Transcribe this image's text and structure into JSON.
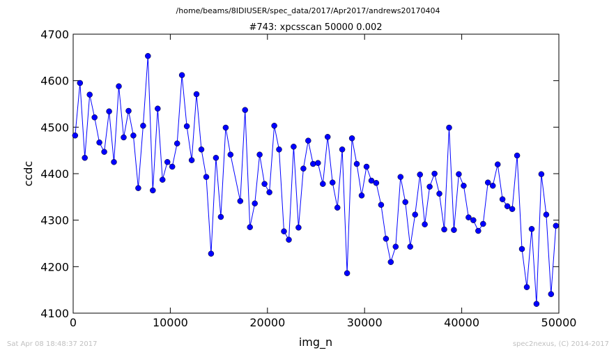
{
  "header": {
    "path": "/home/beams/8IDIUSER/spec_data/2017/Apr2017/andrews20170404"
  },
  "footer": {
    "timestamp": "Sat Apr 08 18:48:37 2017",
    "credit": "spec2nexus, (C) 2014-2017"
  },
  "chart_data": {
    "type": "line",
    "title": "#743: xpcsscan 50000 0.002",
    "xlabel": "img_n",
    "ylabel": "ccdc",
    "xlim": [
      0,
      50000
    ],
    "ylim": [
      4100,
      4700
    ],
    "xticks": [
      0,
      10000,
      20000,
      30000,
      40000,
      50000
    ],
    "yticks": [
      4100,
      4200,
      4300,
      4400,
      4500,
      4600,
      4700
    ],
    "grid": false,
    "line_color": "#0000ff",
    "marker_color": "#0000ff",
    "series": [
      {
        "x": [
          200,
          700,
          1200,
          1700,
          2200,
          2700,
          3200,
          3700,
          4200,
          4700,
          5200,
          5700,
          6200,
          6700,
          7200,
          7700,
          8200,
          8700,
          9200,
          9700,
          10200,
          10700,
          11200,
          11700,
          12200,
          12700,
          13200,
          13700,
          14200,
          14700,
          15200,
          15700,
          16200,
          17200,
          17700,
          18200,
          18700,
          19200,
          19700,
          20200,
          20700,
          21200,
          21700,
          22200,
          22700,
          23200,
          23700,
          24200,
          24700,
          25200,
          25700,
          26200,
          26700,
          27200,
          27700,
          28200,
          28700,
          29200,
          29700,
          30200,
          30700,
          31200,
          31700,
          32200,
          32700,
          33200,
          33700,
          34200,
          34700,
          35200,
          35700,
          36200,
          36700,
          37200,
          37700,
          38200,
          38700,
          39200,
          39700,
          40200,
          40700,
          41200,
          41700,
          42200,
          42700,
          43200,
          43700,
          44200,
          44700,
          45200,
          45700,
          46200,
          46700,
          47200,
          47700,
          48200,
          48700,
          49200,
          49700
        ],
        "y": [
          4482,
          4595,
          4434,
          4570,
          4521,
          4467,
          4447,
          4534,
          4425,
          4588,
          4478,
          4535,
          4482,
          4369,
          4503,
          4653,
          4364,
          4540,
          4387,
          4425,
          4415,
          4465,
          4612,
          4502,
          4429,
          4571,
          4452,
          4393,
          4228,
          4434,
          4307,
          4499,
          4441,
          4341,
          4537,
          4285,
          4336,
          4441,
          4378,
          4360,
          4503,
          4452,
          4276,
          4258,
          4458,
          4284,
          4411,
          4471,
          4421,
          4423,
          4378,
          4479,
          4381,
          4327,
          4452,
          4186,
          4476,
          4421,
          4353,
          4415,
          4385,
          4380,
          4333,
          4260,
          4210,
          4243,
          4393,
          4339,
          4243,
          4312,
          4398,
          4291,
          4372,
          4400,
          4357,
          4280,
          4499,
          4279,
          4399,
          4374,
          4306,
          4300,
          4277,
          4292,
          4381,
          4374,
          4420,
          4345,
          4330,
          4324,
          4439,
          4238,
          4156,
          4281,
          4120,
          4399,
          4312,
          4141,
          4288
        ]
      }
    ]
  }
}
